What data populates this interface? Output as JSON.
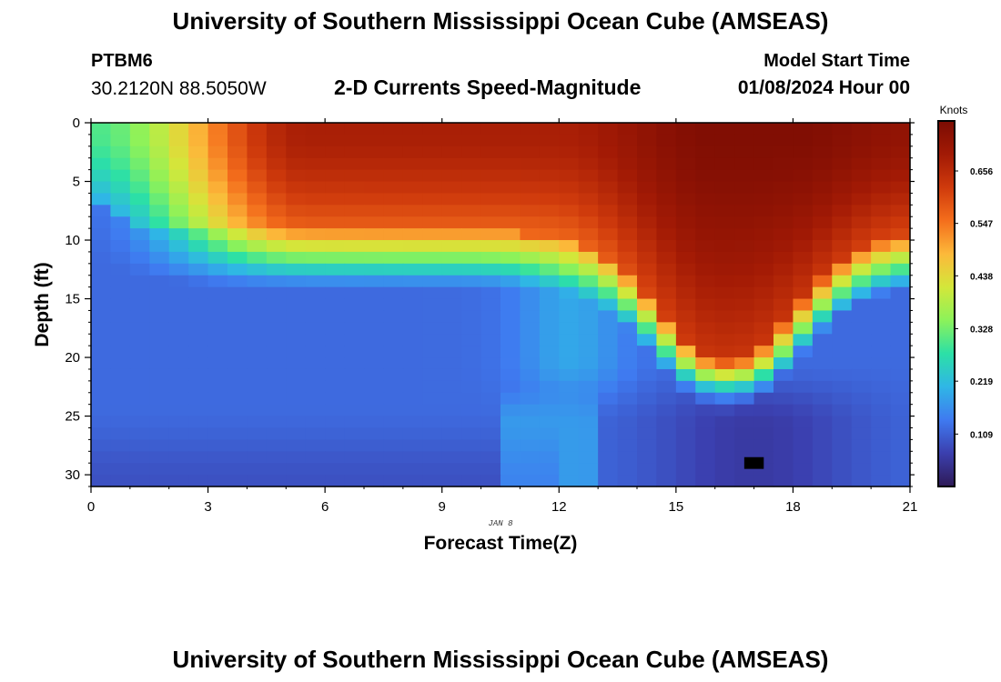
{
  "header": {
    "title": "University of Southern Mississippi Ocean Cube (AMSEAS)",
    "station": "PTBM6",
    "coords": "30.2120N  88.5050W",
    "subtitle": "2-D Currents Speed-Magnitude",
    "model_start_label": "Model Start Time",
    "model_start_value": "01/08/2024 Hour 00"
  },
  "footer": {
    "title": "University of Southern Mississippi Ocean Cube (AMSEAS)"
  },
  "chart_data": {
    "type": "heatmap",
    "title": "2-D Currents Speed-Magnitude",
    "xlabel": "Forecast Time(Z)",
    "ylabel": "Depth (ft)",
    "date_annotation": "JAN 8",
    "xlim": [
      0,
      21
    ],
    "ylim": [
      0,
      31
    ],
    "y_inverted": true,
    "x_ticks": [
      0,
      3,
      6,
      9,
      12,
      15,
      18,
      21
    ],
    "y_ticks": [
      0,
      5,
      10,
      15,
      20,
      25,
      30
    ],
    "colorbar": {
      "label": "Knots",
      "min": 0.0,
      "max": 0.76,
      "ticks": [
        0.109,
        0.219,
        0.328,
        0.438,
        0.547,
        0.656
      ],
      "colors": [
        "#2e1a56",
        "#3b3fae",
        "#3f7af0",
        "#2fb6e6",
        "#2ce0a6",
        "#8cf25a",
        "#d3e73a",
        "#fcb93a",
        "#f46e1c",
        "#cf3a0c",
        "#a21a05",
        "#7b0c03"
      ]
    },
    "cells": {
      "nx": 42,
      "ny": 31,
      "x_step_hours": 0.5,
      "y_step_ft": 1
    },
    "hotspot": {
      "time_hours": 17,
      "depth_ft": 29
    }
  },
  "colors": {
    "axis": "#000000",
    "background": "#ffffff"
  }
}
